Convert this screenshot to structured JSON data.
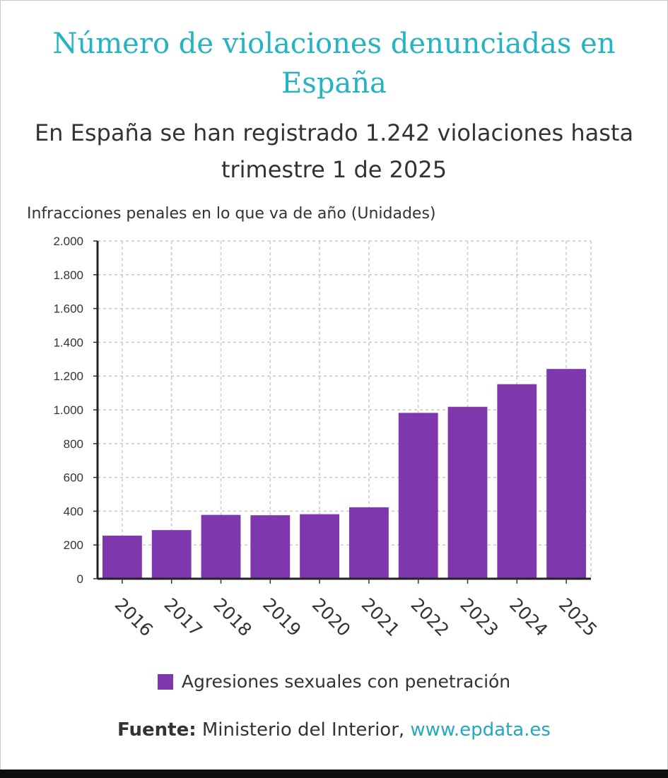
{
  "colors": {
    "title": "#23b3c2",
    "bar": "#7e37ad",
    "link": "#23a8c0"
  },
  "chart_data": {
    "type": "bar",
    "title": "Número de violaciones denunciadas en España",
    "subtitle": "En España se han registrado 1.242 violaciones hasta trimestre 1 de 2025",
    "ylabel": "Infracciones penales en lo que va de año (Unidades)",
    "xlabel": "",
    "ylim": [
      0,
      2000
    ],
    "yticks": [
      0,
      200,
      400,
      600,
      800,
      1000,
      1200,
      1400,
      1600,
      1800,
      2000
    ],
    "ytick_labels": [
      "0",
      "200",
      "400",
      "600",
      "800",
      "1.000",
      "1.200",
      "1.400",
      "1.600",
      "1.800",
      "2.000"
    ],
    "categories": [
      "2016",
      "2017",
      "2018",
      "2019",
      "2020",
      "2021",
      "2022",
      "2023",
      "2024",
      "2025"
    ],
    "series": [
      {
        "name": "Agresiones sexuales con penetración",
        "values": [
          255,
          288,
          378,
          376,
          382,
          423,
          982,
          1018,
          1152,
          1242
        ]
      }
    ],
    "grid": true,
    "legend": "bottom"
  },
  "source": {
    "label": "Fuente:",
    "text": "Ministerio del Interior,",
    "link": "www.epdata.es"
  }
}
